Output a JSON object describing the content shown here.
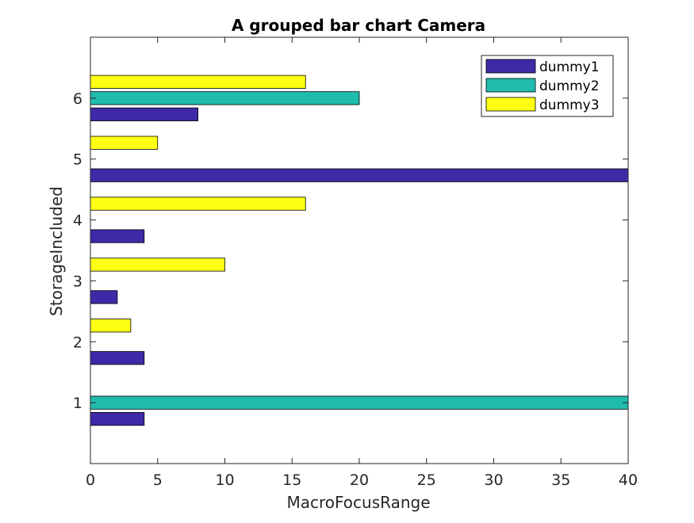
{
  "chart_data": {
    "type": "bar",
    "orientation": "horizontal",
    "title": "A grouped bar chart Camera",
    "xlabel": "MacroFocusRange",
    "ylabel": "StorageIncluded",
    "categories": [
      1,
      2,
      3,
      4,
      5,
      6
    ],
    "xlim": [
      0,
      40
    ],
    "ylim": [
      0,
      7
    ],
    "xticks": [
      0,
      5,
      10,
      15,
      20,
      25,
      30,
      35,
      40
    ],
    "yticks": [
      1,
      2,
      3,
      4,
      5,
      6
    ],
    "grid": false,
    "legend_position": "top-right",
    "series": [
      {
        "name": "dummy1",
        "color": "#3e2aa6",
        "values": [
          4,
          4,
          2,
          4,
          41,
          8
        ]
      },
      {
        "name": "dummy2",
        "color": "#1fbcae",
        "values": [
          41,
          0,
          0,
          0,
          0,
          20
        ]
      },
      {
        "name": "dummy3",
        "color": "#ffff14",
        "values": [
          0,
          3,
          10,
          16,
          5,
          16
        ]
      }
    ]
  }
}
